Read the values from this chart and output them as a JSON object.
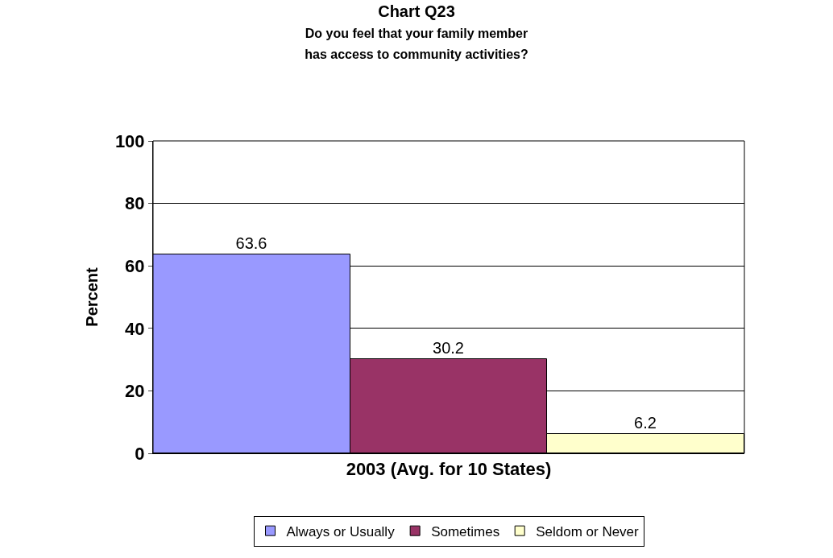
{
  "chart_data": {
    "type": "bar",
    "title": "Chart Q23",
    "subtitle": "Do you feel that your family member\nhas access to community activities?",
    "ylabel": "Percent",
    "categories": [
      "2003 (Avg. for 10 States)"
    ],
    "series": [
      {
        "name": "Always or Usually",
        "color": "#9999ff",
        "values": [
          63.6
        ]
      },
      {
        "name": "Sometimes",
        "color": "#993366",
        "values": [
          30.2
        ]
      },
      {
        "name": "Seldom or Never",
        "color": "#ffffcc",
        "values": [
          6.2
        ]
      }
    ],
    "ylim": [
      0,
      100
    ],
    "yticks": [
      0,
      20,
      40,
      60,
      80,
      100
    ],
    "grid": "y",
    "legend": "bottom",
    "data_labels": true
  }
}
